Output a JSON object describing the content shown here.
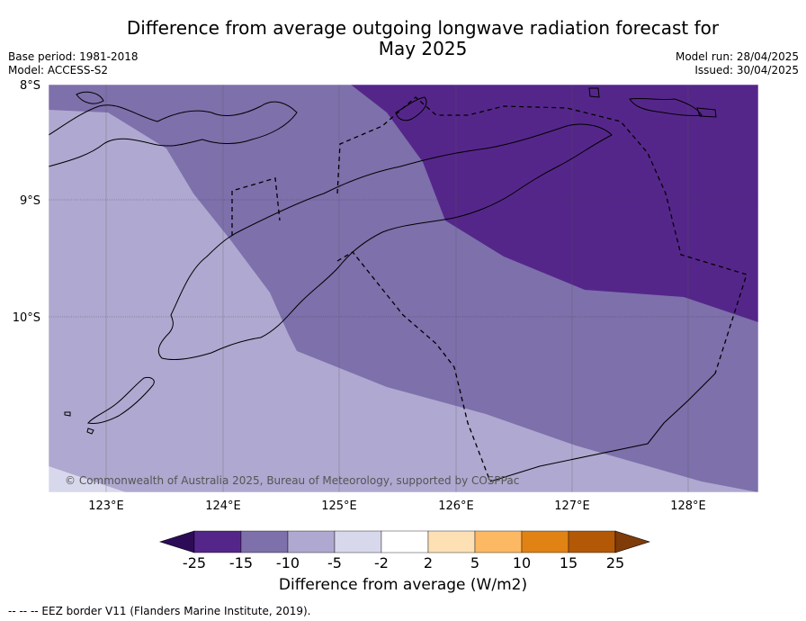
{
  "title_line1": "Difference from average outgoing longwave radiation forecast for",
  "title_line2": "May 2025",
  "base_period": "Base period: 1981-2018",
  "model": "Model: ACCESS-S2",
  "model_run": "Model run: 28/04/2025",
  "issued": "Issued: 30/04/2025",
  "copyright": "© Commonwealth of Australia 2025, Bureau of Meteorology, supported by COSPPac",
  "lat_labels": [
    "8°S",
    "9°S",
    "10°S"
  ],
  "lon_labels": [
    "123°E",
    "124°E",
    "125°E",
    "126°E",
    "127°E",
    "128°E"
  ],
  "colorbar": {
    "ticks": [
      "-25",
      "-15",
      "-10",
      "-5",
      "-2",
      "2",
      "5",
      "10",
      "15",
      "25"
    ],
    "colors": [
      "#2d0c57",
      "#55268a",
      "#7d70ab",
      "#afa8d0",
      "#d8d8ec",
      "#ffffff",
      "#fde0b4",
      "#fdb863",
      "#e08214",
      "#b35806",
      "#7f3b08"
    ],
    "label": "Difference from average (W/m2)"
  },
  "footnote": "--  --  -- EEZ border V11 (Flanders Marine Institute, 2019)."
}
